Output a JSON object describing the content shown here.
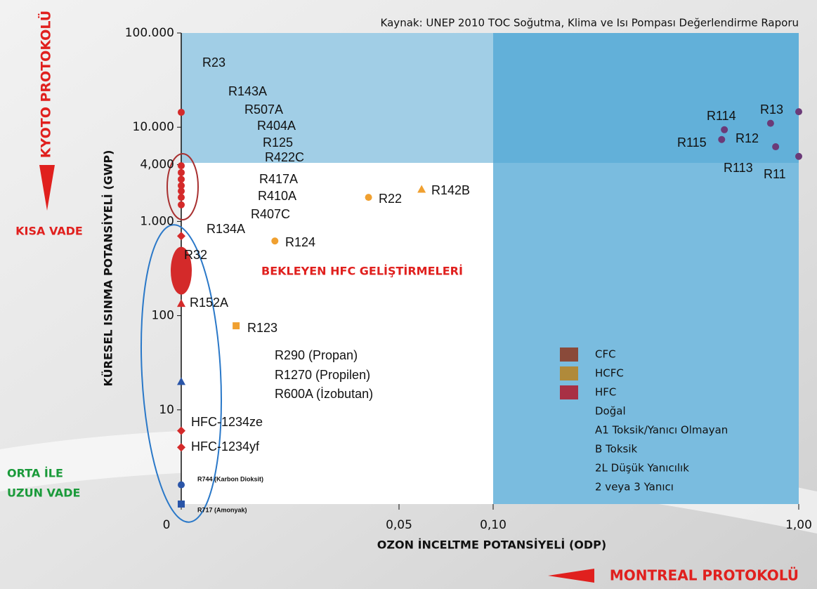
{
  "chart_data": {
    "type": "scatter",
    "source": "Kaynak: UNEP 2010 TOC Soğutma, Klima ve Isı Pompası Değerlendirme Raporu",
    "xlabel": "OZON İNCELTME POTANSİYELİ (ODP)",
    "ylabel": "KÜRESEL ISINMA POTANSİYELİ (GWP)",
    "log_y": true,
    "xlim": [
      0,
      1
    ],
    "ylim": [
      1,
      100000
    ],
    "xticks": [
      0,
      {
        "value": 0.05,
        "label": "0,05"
      },
      {
        "value": 0.1,
        "label": "0,10"
      },
      {
        "value": 1,
        "label": "1,00"
      }
    ],
    "yticks": [
      {
        "value": 100000,
        "label": "100.000"
      },
      {
        "value": 10000,
        "label": "10.000"
      },
      {
        "value": 4000,
        "label": "4,000"
      },
      {
        "value": 1000,
        "label": "1.000"
      },
      100,
      10
    ],
    "series": [
      {
        "name": "CFC",
        "color": "#8a4a3a",
        "point_color": "#6b3a78",
        "x": [
          1,
          0.917,
          0.781,
          0.773,
          0.932,
          1
        ],
        "values": [
          14600,
          11000,
          9400,
          7400,
          6200,
          4900
        ],
        "markers": [
          "circle",
          "circle",
          "circle",
          "circle",
          "circle",
          "circle"
        ]
      },
      {
        "name": "HCFC",
        "color": "#b08a3a",
        "point_color": "#f0a030",
        "x": [
          0.043,
          0.062,
          0.0215,
          0.0126
        ],
        "values": [
          1800,
          2200,
          620,
          78
        ],
        "markers": [
          "circle",
          "triangle",
          "circle",
          "square"
        ]
      },
      {
        "name": "HFC",
        "color": "#a83045",
        "point_color": "#d42a2a",
        "x": [
          0,
          0,
          0,
          0,
          0,
          0,
          0,
          0,
          0,
          0,
          0,
          0,
          0
        ],
        "values": [
          14400,
          3900,
          3300,
          2800,
          2400,
          2100,
          1800,
          1500,
          700,
          300,
          135,
          6,
          4
        ],
        "markers": [
          "circle",
          "circle",
          "circle",
          "circle",
          "circle",
          "circle",
          "circle",
          "circle",
          "diamond",
          "blob",
          "triangle",
          "diamond",
          "diamond"
        ]
      },
      {
        "name": "Doğal",
        "point_color": "#2a55a8",
        "x": [
          0,
          0,
          0
        ],
        "values": [
          20,
          1.6,
          1
        ],
        "markers": [
          "triangle",
          "circle",
          "square"
        ]
      }
    ],
    "legend_notes": [
      "A1 Toksik/Yanıcı Olmayan",
      "B Toksik",
      "2L Düşük Yanıcılık",
      "2 veya 3 Yanıcı"
    ],
    "annotations": [
      "R23",
      "R143A",
      "R507A",
      "R404A",
      "R125",
      "R422C",
      "R417A",
      "R410A",
      "R407C",
      "R134A",
      "R32",
      "R152A",
      "R22",
      "R142B",
      "R124",
      "R123",
      "R290 (Propan)",
      "R1270 (Propilen)",
      "R600A (İzobutan)",
      "HFC-1234ze",
      "HFC-1234yf",
      "R744 (Karbon Dioksit)",
      "R717 (Amonyak)",
      "R114",
      "R13",
      "R115",
      "R12",
      "R113",
      "R11",
      "BEKLEYEN HFC GELİŞTİRMELERİ"
    ],
    "side_labels": {
      "kyoto": "KYOTO PROTOKOLÜ",
      "short": "KISA VADE",
      "long": [
        "ORTA İLE",
        "UZUN VADE"
      ],
      "montreal": "MONTREAL PROTOKOLÜ"
    }
  }
}
